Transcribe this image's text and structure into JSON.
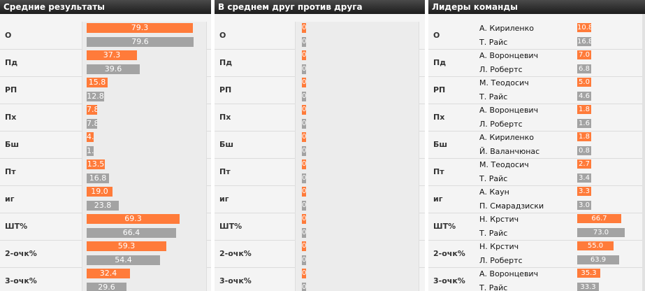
{
  "panels": {
    "averages": {
      "title": "Средние результаты"
    },
    "head_to_head": {
      "title": "В среднем друг против друга"
    },
    "leaders": {
      "title": "Лидеры команды"
    }
  },
  "colors": {
    "team_a": "#ff7b3a",
    "team_b": "#a3a3a3"
  },
  "chart_data": [
    {
      "type": "bar",
      "title": "Средние результаты",
      "categories": [
        "О",
        "Пд",
        "РП",
        "Пх",
        "Бш",
        "Пт",
        "иг",
        "ШТ%",
        "2-очк%",
        "3-очк%"
      ],
      "xlim": [
        0,
        79.6
      ],
      "series": [
        {
          "values": [
            79.3,
            37.3,
            15.8,
            7.8,
            4.0,
            13.5,
            19.0,
            69.3,
            59.3,
            32.4
          ]
        },
        {
          "values": [
            79.6,
            39.6,
            12.8,
            7.8,
            1.4,
            16.8,
            23.8,
            66.4,
            54.4,
            29.6
          ]
        }
      ]
    },
    {
      "type": "bar",
      "title": "В среднем друг против друга",
      "categories": [
        "О",
        "Пд",
        "РП",
        "Пх",
        "Бш",
        "Пт",
        "иг",
        "ШТ%",
        "2-очк%",
        "3-очк%"
      ],
      "series": [
        {
          "values": [
            0,
            0,
            0,
            0,
            0,
            0,
            0,
            0,
            0,
            0
          ]
        },
        {
          "values": [
            0,
            0,
            0,
            0,
            0,
            0,
            0,
            0,
            0,
            0
          ]
        }
      ]
    },
    {
      "type": "bar",
      "title": "Лидеры команды",
      "categories": [
        "О",
        "Пд",
        "РП",
        "Пх",
        "Бш",
        "Пт",
        "иг",
        "ШТ%",
        "2-очк%",
        "3-очк%"
      ],
      "series": [
        {
          "players": [
            "А. Кириленко",
            "А. Воронцевич",
            "М. Теодосич",
            "А. Воронцевич",
            "А. Кириленко",
            "М. Теодосич",
            "А. Каун",
            "Н. Крстич",
            "Н. Крстич",
            "А. Воронцевич"
          ],
          "values": [
            10.8,
            7.0,
            5.0,
            1.8,
            1.8,
            2.7,
            3.3,
            66.7,
            55.0,
            35.3
          ],
          "labels": [
            "10.8",
            "7.0",
            "5.0",
            "1.8",
            "1.8",
            "2.7",
            "3.3",
            "66.7",
            "55.0",
            "35.3"
          ]
        },
        {
          "players": [
            "Т. Райс",
            "Л. Робертс",
            "Т. Райс",
            "Л. Робертс",
            "Й. Валанчюнас",
            "Т. Райс",
            "П. Смарадзиски",
            "Т. Райс",
            "Л. Робертс",
            "Т. Райс"
          ],
          "values": [
            16.8,
            6.8,
            4.6,
            1.6,
            0.8,
            3.4,
            3.0,
            73.0,
            63.9,
            33.3
          ],
          "labels": [
            "16.8",
            "6.8",
            "4.6",
            "1.6",
            "0.8",
            "3.4",
            "3.0",
            "73.0",
            "63.9",
            "33.3"
          ]
        }
      ]
    }
  ]
}
